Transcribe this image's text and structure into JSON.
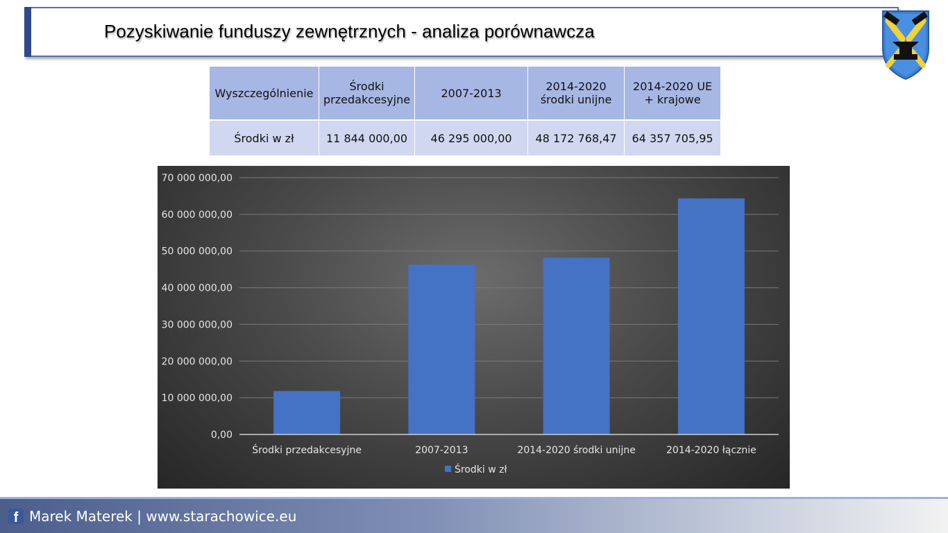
{
  "header": {
    "title": "Pozyskiwanie funduszy zewnętrznych - analiza porównawcza"
  },
  "table": {
    "headers": [
      "Wyszczególnienie",
      "Środki przedakcesyjne",
      "2007-2013",
      "2014-2020 środki unijne",
      "2014-2020 UE + krajowe"
    ],
    "row_label": "Środki w zł",
    "values": [
      "11 844 000,00",
      "46 295 000,00",
      "48 172 768,47",
      "64 357 705,95"
    ]
  },
  "chart_data": {
    "type": "bar",
    "categories": [
      "Środki przedakcesyjne",
      "2007-2013",
      "2014-2020 środki unijne",
      "2014-2020 łącznie"
    ],
    "series": [
      {
        "name": "Środki w zł",
        "values": [
          11844000.0,
          46295000.0,
          48172768.47,
          64357705.95
        ]
      }
    ],
    "ylim": [
      0,
      70000000
    ],
    "y_ticks": [
      "0,00",
      "10 000 000,00",
      "20 000 000,00",
      "30 000 000,00",
      "40 000 000,00",
      "50 000 000,00",
      "60 000 000,00",
      "70 000 000,00"
    ],
    "grid": true,
    "legend": "bottom",
    "colors": {
      "bar": "#4472c4",
      "background": "#404040",
      "grid": "#7a7a7a",
      "text": "#e6e6e6"
    }
  },
  "footer": {
    "icon": "facebook-icon",
    "text": "Marek Materek | www.starachowice.eu"
  }
}
